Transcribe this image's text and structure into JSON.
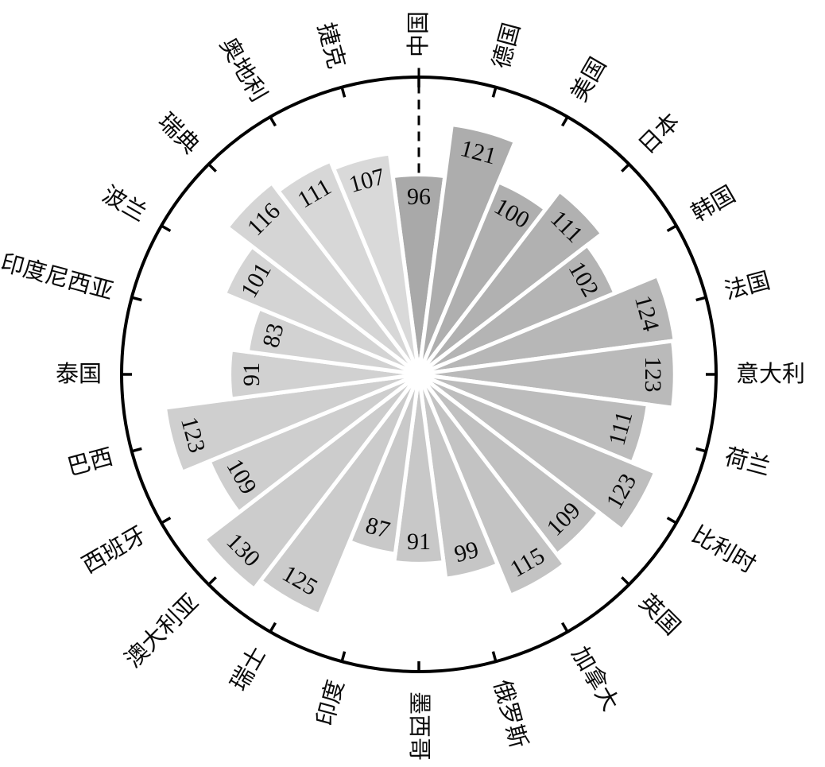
{
  "chart_data": {
    "type": "bar",
    "layout": "polar-rose",
    "title": "",
    "xlabel": "",
    "ylabel": "",
    "legend": null,
    "grid": false,
    "angle_step_deg": 15,
    "start_position": "top",
    "direction": "clockwise",
    "value_range_implied": [
      0,
      143
    ],
    "reference_marker": {
      "category": "中国",
      "style": "dashed-radial-line"
    },
    "axis_style": {
      "outer_circle_color": "#000000",
      "tick_color": "#000000",
      "ticks_point": "inward"
    },
    "categories": [
      "中国",
      "德国",
      "美国",
      "日本",
      "韩国",
      "法国",
      "意大利",
      "荷兰",
      "比利时",
      "英国",
      "加拿大",
      "俄罗斯",
      "墨西哥",
      "印度",
      "瑞士",
      "澳大利亚",
      "西班牙",
      "巴西",
      "泰国",
      "印度尼西亚",
      "波兰",
      "瑞典",
      "奥地利",
      "捷克"
    ],
    "values": [
      96,
      121,
      100,
      111,
      102,
      124,
      123,
      111,
      123,
      109,
      115,
      99,
      91,
      87,
      125,
      130,
      109,
      123,
      91,
      83,
      101,
      116,
      111,
      107
    ],
    "points": [
      {
        "name": "中国",
        "en": "china",
        "value": 96,
        "color": "#A9A9A9"
      },
      {
        "name": "德国",
        "en": "germany",
        "value": 121,
        "color": "#ADADAD"
      },
      {
        "name": "美国",
        "en": "usa",
        "value": 100,
        "color": "#AFAFAF"
      },
      {
        "name": "日本",
        "en": "japan",
        "value": 111,
        "color": "#B1B1B1"
      },
      {
        "name": "韩国",
        "en": "south-korea",
        "value": 102,
        "color": "#B4B4B4"
      },
      {
        "name": "法国",
        "en": "france",
        "value": 124,
        "color": "#B7B7B7"
      },
      {
        "name": "意大利",
        "en": "italy",
        "value": 123,
        "color": "#BABABA"
      },
      {
        "name": "荷兰",
        "en": "netherlands",
        "value": 111,
        "color": "#BCBCBC"
      },
      {
        "name": "比利时",
        "en": "belgium",
        "value": 123,
        "color": "#BEBEBE"
      },
      {
        "name": "英国",
        "en": "uk",
        "value": 109,
        "color": "#C0C0C0"
      },
      {
        "name": "加拿大",
        "en": "canada",
        "value": 115,
        "color": "#C3C3C3"
      },
      {
        "name": "俄罗斯",
        "en": "russia",
        "value": 99,
        "color": "#C6C6C6"
      },
      {
        "name": "墨西哥",
        "en": "mexico",
        "value": 91,
        "color": "#C8C8C8"
      },
      {
        "name": "印度",
        "en": "india",
        "value": 87,
        "color": "#C9C9C9"
      },
      {
        "name": "瑞士",
        "en": "switzerland",
        "value": 125,
        "color": "#CBCBCB"
      },
      {
        "name": "澳大利亚",
        "en": "australia",
        "value": 130,
        "color": "#CCCCCC"
      },
      {
        "name": "西班牙",
        "en": "spain",
        "value": 109,
        "color": "#CECECE"
      },
      {
        "name": "巴西",
        "en": "brazil",
        "value": 123,
        "color": "#CFCFCF"
      },
      {
        "name": "泰国",
        "en": "thailand",
        "value": 91,
        "color": "#D1D1D1"
      },
      {
        "name": "印度尼西亚",
        "en": "indonesia",
        "value": 83,
        "color": "#D2D2D2"
      },
      {
        "name": "波兰",
        "en": "poland",
        "value": 101,
        "color": "#D4D4D4"
      },
      {
        "name": "瑞典",
        "en": "sweden",
        "value": 116,
        "color": "#D5D5D5"
      },
      {
        "name": "奥地利",
        "en": "austria",
        "value": 111,
        "color": "#D7D7D7"
      },
      {
        "name": "捷克",
        "en": "czech",
        "value": 107,
        "color": "#D9D9D9"
      }
    ]
  }
}
